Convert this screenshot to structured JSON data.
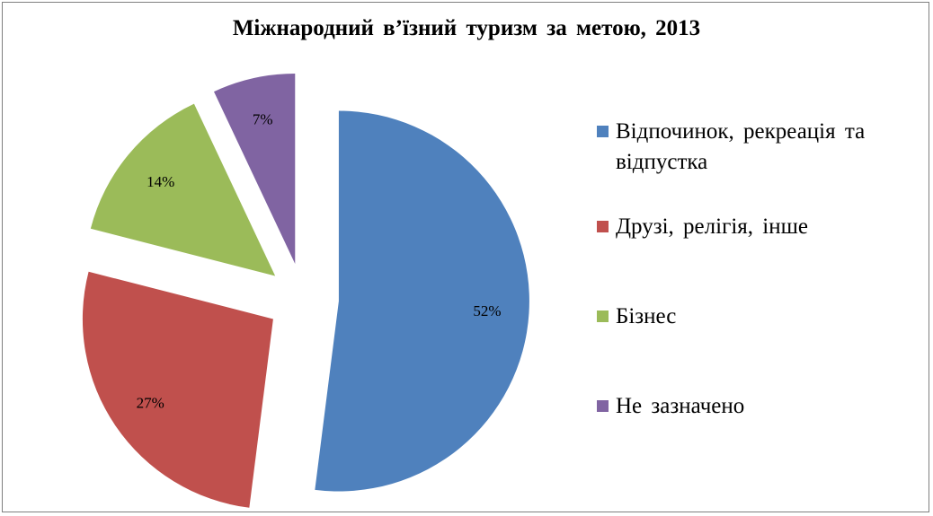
{
  "chart_data": {
    "type": "pie",
    "title": "Міжнародний в’їзний туризм за метою, 2013",
    "series": [
      {
        "values": [
          52,
          27,
          14,
          7
        ],
        "data_labels": [
          "52%",
          "27%",
          "14%",
          "7%"
        ]
      }
    ],
    "categories": [
      "Відпочинок, рекреація та відпустка",
      "Друзі, релігія, інше",
      "Бізнес",
      "Не зазначено"
    ],
    "colors": [
      "#4f81bd",
      "#c0504d",
      "#9bbb59",
      "#8064a2"
    ],
    "exploded": true,
    "legend_position": "right"
  }
}
